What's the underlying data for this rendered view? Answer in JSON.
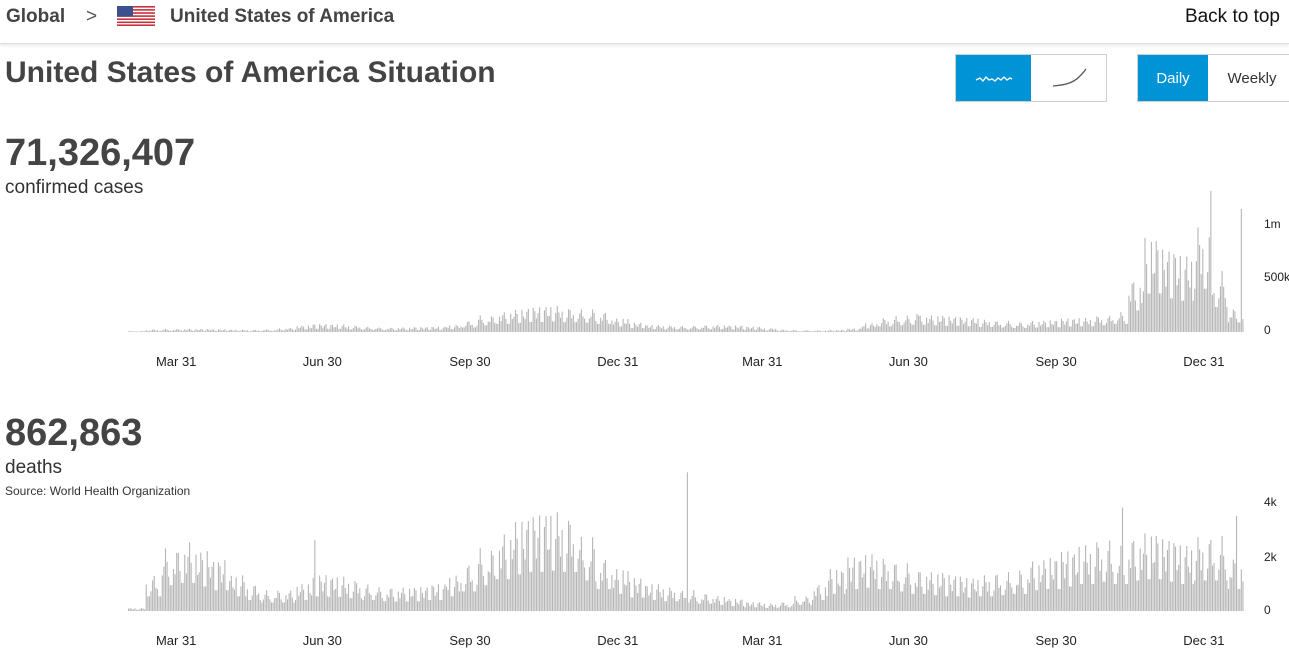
{
  "breadcrumb": {
    "global": "Global",
    "separator": ">",
    "country": "United States of America"
  },
  "back_to_top": "Back to top",
  "title": "United States of America Situation",
  "toggles": {
    "chart_style": [
      {
        "icon": "daily-sparkline-icon",
        "active": true
      },
      {
        "icon": "cumulative-curve-icon",
        "active": false
      }
    ],
    "period": [
      {
        "label": "Daily",
        "active": true
      },
      {
        "label": "Weekly",
        "active": false
      }
    ]
  },
  "colors": {
    "accent": "#0093d5",
    "bar": "#b5b5b5",
    "text": "#444444"
  },
  "cases": {
    "total": "71,326,407",
    "label": "confirmed cases"
  },
  "deaths": {
    "total": "862,863",
    "label": "deaths",
    "source": "Source: World Health Organization"
  },
  "chart_data": [
    {
      "type": "bar",
      "name": "confirmed cases",
      "x_tick_labels": [
        "Mar 31",
        "Jun 30",
        "Sep 30",
        "Dec 31",
        "Mar 31",
        "Jun 30",
        "Sep 30",
        "Dec 31"
      ],
      "y_tick_labels": [
        "0",
        "500k",
        "1m"
      ],
      "ylim": [
        0,
        1300000
      ],
      "x_range": [
        "2020-03-01",
        "2022-01-25"
      ],
      "values_by_half_month": [
        8000,
        22000,
        25000,
        27000,
        25000,
        23000,
        20000,
        18000,
        22000,
        35000,
        55000,
        68000,
        65000,
        55000,
        45000,
        38000,
        38000,
        42000,
        45000,
        60000,
        95000,
        140000,
        170000,
        190000,
        210000,
        220000,
        205000,
        195000,
        170000,
        115000,
        80000,
        60000,
        55000,
        52000,
        58000,
        60000,
        55000,
        45000,
        32000,
        20000,
        15000,
        14000,
        18000,
        30000,
        75000,
        120000,
        140000,
        150000,
        140000,
        130000,
        120000,
        105000,
        95000,
        85000,
        95000,
        100000,
        115000,
        120000,
        140000,
        170000,
        450000,
        800000,
        700000,
        650000,
        900000,
        520000,
        200000
      ],
      "spikes": [
        {
          "date": "2021-07-05",
          "value": 170000
        },
        {
          "date": "2022-01-04",
          "value": 1320000
        },
        {
          "date": "2022-01-23",
          "value": 1150000
        }
      ]
    },
    {
      "type": "bar",
      "name": "deaths",
      "x_tick_labels": [
        "Mar 31",
        "Jun 30",
        "Sep 30",
        "Dec 31",
        "Mar 31",
        "Jun 30",
        "Sep 30",
        "Dec 31"
      ],
      "y_tick_labels": [
        "0",
        "2k",
        "4k"
      ],
      "ylim": [
        0,
        5000
      ],
      "x_range": [
        "2020-03-01",
        "2022-01-25"
      ],
      "values_by_half_month": [
        100,
        1200,
        2100,
        2300,
        2000,
        1700,
        1200,
        900,
        700,
        700,
        900,
        1200,
        1150,
        1050,
        900,
        800,
        780,
        800,
        900,
        1200,
        1600,
        2100,
        2600,
        3000,
        3200,
        3300,
        3200,
        2500,
        1800,
        1400,
        1100,
        900,
        800,
        700,
        600,
        500,
        400,
        300,
        250,
        300,
        500,
        900,
        1400,
        1800,
        1900,
        1800,
        1600,
        1400,
        1300,
        1200,
        1100,
        1200,
        1300,
        1400,
        1700,
        1800,
        2000,
        2200,
        2400,
        2200,
        2500,
        2600,
        2400,
        2200,
        2500,
        2500,
        1800
      ],
      "spikes": [
        {
          "date": "2020-06-25",
          "value": 2600
        },
        {
          "date": "2021-02-12",
          "value": 5100
        },
        {
          "date": "2021-11-10",
          "value": 3800
        },
        {
          "date": "2022-01-20",
          "value": 3500
        }
      ]
    }
  ]
}
